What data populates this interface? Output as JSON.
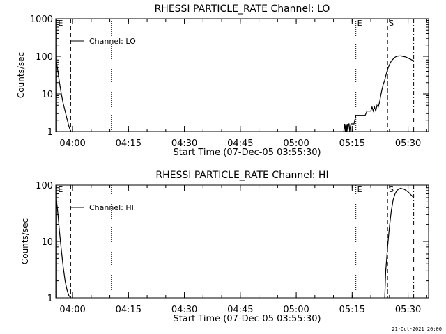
{
  "footer": {
    "timestamp": "21-Oct-2021 20:00"
  },
  "chart_data": [
    {
      "type": "line",
      "title": "RHESSI PARTICLE_RATE Channel: LO",
      "xlabel": "Start Time (07-Dec-05 03:55:30)",
      "ylabel": "Counts/sec",
      "yscale": "log",
      "ylim": [
        1,
        1000
      ],
      "xlim": [
        "03:55:30",
        "05:35:30"
      ],
      "xticks": [
        "04:00",
        "04:15",
        "04:30",
        "04:45",
        "05:00",
        "05:15",
        "05:30"
      ],
      "yticks": [
        "1",
        "10",
        "100",
        "1000"
      ],
      "legend": {
        "label": "Channel: LO",
        "placement": "top-left"
      },
      "markers": [
        {
          "label": "E",
          "time": "03:55:45",
          "style": "solid"
        },
        {
          "label": "",
          "time": "03:59:30",
          "style": "dashed"
        },
        {
          "label": "",
          "time": "04:10:30",
          "style": "dotted"
        },
        {
          "label": "E",
          "time": "05:16:00",
          "style": "dotted"
        },
        {
          "label": "S",
          "time": "05:24:30",
          "style": "dashed"
        },
        {
          "label": "",
          "time": "05:31:30",
          "style": "dashdot"
        }
      ],
      "series": [
        {
          "segments": [
            {
              "x": [
                "03:55:30",
                "03:56:00",
                "03:56:30",
                "03:57:00",
                "03:57:30",
                "03:58:00",
                "03:58:30",
                "03:59:00",
                "03:59:30"
              ],
              "y": [
                90,
                45,
                20,
                10,
                5.5,
                3.5,
                2.2,
                1.4,
                1
              ]
            },
            {
              "x": [
                "05:12:45",
                "05:13:00",
                "05:13:10",
                "05:13:20",
                "05:13:30",
                "05:13:40",
                "05:13:50",
                "05:14:00",
                "05:14:10",
                "05:14:20",
                "05:14:40",
                "05:15:00",
                "05:15:30",
                "05:16:00",
                "05:16:30",
                "05:17:00",
                "05:17:30",
                "05:18:00",
                "05:18:30",
                "05:19:00",
                "05:19:30",
                "05:20:00",
                "05:20:20",
                "05:20:40",
                "05:21:00",
                "05:21:20",
                "05:21:40",
                "05:22:00",
                "05:22:20",
                "05:22:40",
                "05:23:00",
                "05:23:20",
                "05:23:40",
                "05:24:00",
                "05:24:30",
                "05:25:00",
                "05:25:30",
                "05:26:00",
                "05:26:30",
                "05:27:00",
                "05:27:30",
                "05:28:00",
                "05:28:30",
                "05:29:00",
                "05:29:30",
                "05:30:00",
                "05:30:30",
                "05:31:00",
                "05:31:30"
              ],
              "y": [
                1,
                1.6,
                1,
                1.6,
                1,
                1.6,
                1,
                1.6,
                1.6,
                1,
                1.6,
                1.6,
                1.6,
                2.7,
                2.7,
                2.7,
                2.7,
                2.7,
                2.7,
                3.5,
                3.5,
                3.5,
                4.5,
                3.5,
                4.5,
                3.5,
                5,
                4.5,
                6,
                9,
                13,
                18,
                22,
                30,
                45,
                60,
                75,
                85,
                95,
                100,
                102,
                103,
                100,
                98,
                95,
                90,
                85,
                80,
                78
              ]
            }
          ]
        }
      ]
    },
    {
      "type": "line",
      "title": "RHESSI PARTICLE_RATE Channel: HI",
      "xlabel": "Start Time (07-Dec-05 03:55:30)",
      "ylabel": "Counts/sec",
      "yscale": "log",
      "ylim": [
        1,
        100
      ],
      "xlim": [
        "03:55:30",
        "05:35:30"
      ],
      "xticks": [
        "04:00",
        "04:15",
        "04:30",
        "04:45",
        "05:00",
        "05:15",
        "05:30"
      ],
      "yticks": [
        "1",
        "10",
        "100"
      ],
      "legend": {
        "label": "Channel: HI",
        "placement": "top-left"
      },
      "markers": [
        {
          "label": "E",
          "time": "03:55:45",
          "style": "solid"
        },
        {
          "label": "",
          "time": "03:59:30",
          "style": "dashed"
        },
        {
          "label": "",
          "time": "04:10:30",
          "style": "dotted"
        },
        {
          "label": "E",
          "time": "05:16:00",
          "style": "dotted"
        },
        {
          "label": "S",
          "time": "05:24:30",
          "style": "dashed"
        },
        {
          "label": "",
          "time": "05:31:30",
          "style": "dashdot"
        }
      ],
      "series": [
        {
          "segments": [
            {
              "x": [
                "03:55:30",
                "03:56:00",
                "03:56:30",
                "03:57:00",
                "03:57:30",
                "03:58:00",
                "03:58:30",
                "03:59:00",
                "03:59:30"
              ],
              "y": [
                70,
                35,
                15,
                7,
                3.5,
                2,
                1.4,
                1.1,
                1
              ]
            },
            {
              "x": [
                "05:23:45",
                "05:24:00",
                "05:24:30",
                "05:25:00",
                "05:25:30",
                "05:26:00",
                "05:26:30",
                "05:27:00",
                "05:27:30",
                "05:28:00",
                "05:28:30",
                "05:29:00",
                "05:29:30",
                "05:30:00",
                "05:30:30",
                "05:31:00",
                "05:31:30"
              ],
              "y": [
                1,
                3,
                8,
                18,
                35,
                55,
                70,
                80,
                85,
                88,
                86,
                84,
                80,
                76,
                70,
                65,
                60
              ]
            }
          ]
        }
      ]
    }
  ]
}
